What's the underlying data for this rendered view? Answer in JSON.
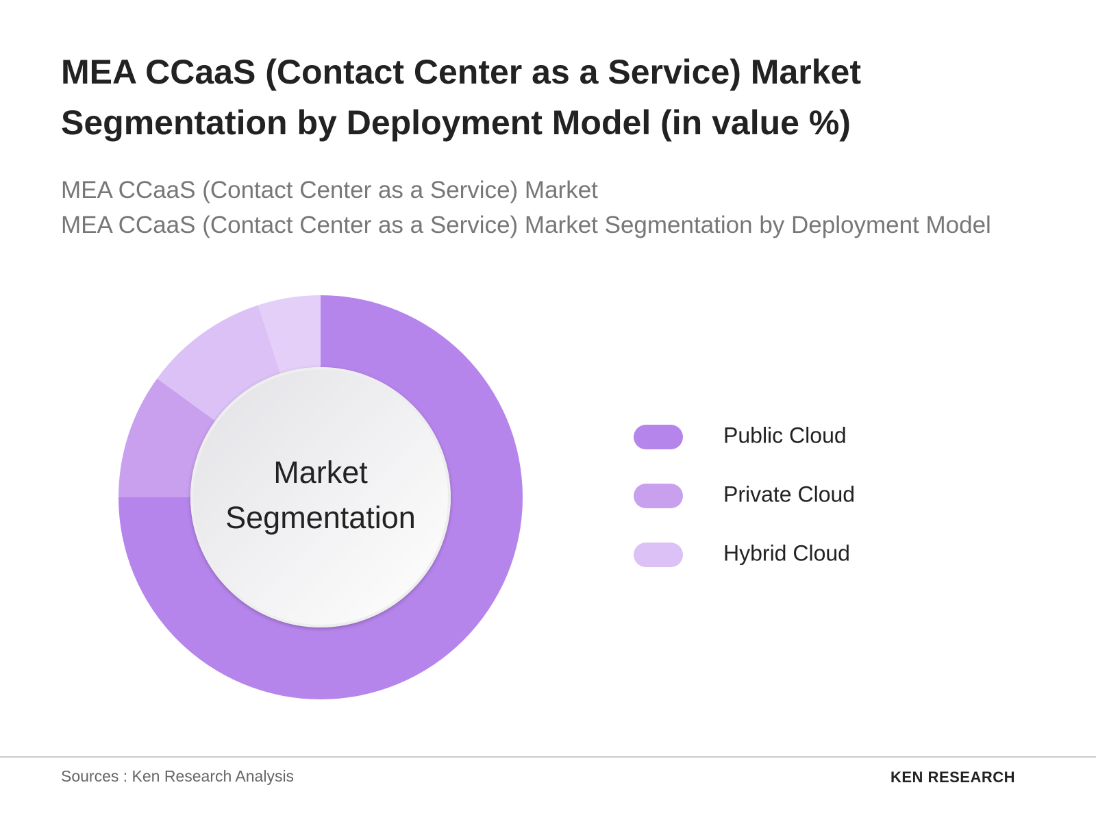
{
  "chart_data": {
    "type": "donut",
    "title": "MEA CCaaS (Contact Center as a Service) Market Segmentation by Deployment Model (in value %)",
    "subtitle": [
      "MEA CCaaS (Contact Center as a Service) Market",
      "MEA CCaaS (Contact Center as a Service) Market Segmentation by Deployment Model"
    ],
    "center_label": "Market Segmentation",
    "categories": [
      "Public Cloud",
      "Private Cloud",
      "Hybrid Cloud",
      null
    ],
    "values": [
      75,
      10,
      10,
      5
    ],
    "colors": [
      "#b685ec",
      "#c9a0ee",
      "#dbc1f6",
      "#e3cff8"
    ],
    "source": "Sources : Ken Research Analysis",
    "brand": "KEN RESEARCH"
  }
}
